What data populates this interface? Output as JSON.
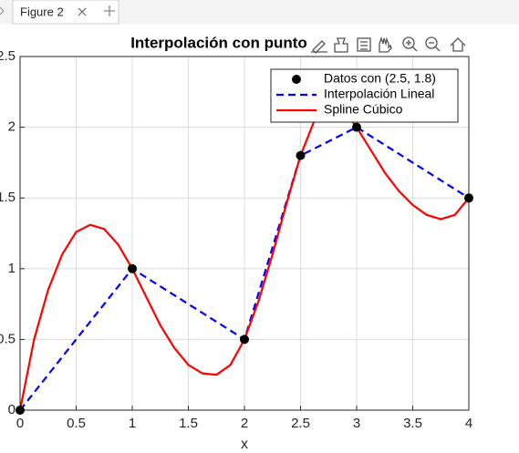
{
  "tab": {
    "label": "Figure 2"
  },
  "chart_data": {
    "type": "line",
    "title": "Interpolación con punto",
    "xlabel": "x",
    "xlim": [
      0,
      4
    ],
    "xticks": [
      0,
      0.5,
      1,
      1.5,
      2,
      2.5,
      3,
      3.5,
      4
    ],
    "ylim": [
      0,
      2.5
    ],
    "yticks": [
      0,
      0.5,
      1,
      1.5,
      2,
      2.5
    ],
    "grid": true,
    "legend": "upper right",
    "series": [
      {
        "name": "Datos con (2.5, 1.8)",
        "color": "#000000",
        "marker": "circle",
        "linestyle": "none",
        "x": [
          0,
          1,
          2,
          2.5,
          3,
          4
        ],
        "values": [
          0,
          1,
          0.5,
          1.8,
          2,
          1.5
        ]
      },
      {
        "name": "Interpolación Lineal",
        "color": "#0000ff",
        "marker": "none",
        "linestyle": "dashed",
        "x": [
          0,
          1,
          2,
          2.5,
          3,
          4
        ],
        "values": [
          0,
          1,
          0.5,
          1.8,
          2,
          1.5
        ]
      },
      {
        "name": "Spline Cúbico",
        "color": "#ff0000",
        "marker": "none",
        "linestyle": "solid",
        "x": [
          0,
          0.125,
          0.25,
          0.375,
          0.5,
          0.625,
          0.75,
          0.875,
          1,
          1.125,
          1.25,
          1.375,
          1.5,
          1.625,
          1.75,
          1.875,
          2,
          2.125,
          2.25,
          2.375,
          2.5,
          2.625,
          2.75,
          2.875,
          3,
          3.125,
          3.25,
          3.375,
          3.5,
          3.625,
          3.75,
          3.875,
          4
        ],
        "values": [
          0,
          0.5,
          0.85,
          1.1,
          1.26,
          1.31,
          1.28,
          1.17,
          1.0,
          0.8,
          0.6,
          0.44,
          0.32,
          0.26,
          0.25,
          0.32,
          0.5,
          0.77,
          1.1,
          1.46,
          1.8,
          2.05,
          2.17,
          2.13,
          2.0,
          1.84,
          1.68,
          1.55,
          1.45,
          1.38,
          1.35,
          1.38,
          1.5
        ]
      }
    ]
  }
}
